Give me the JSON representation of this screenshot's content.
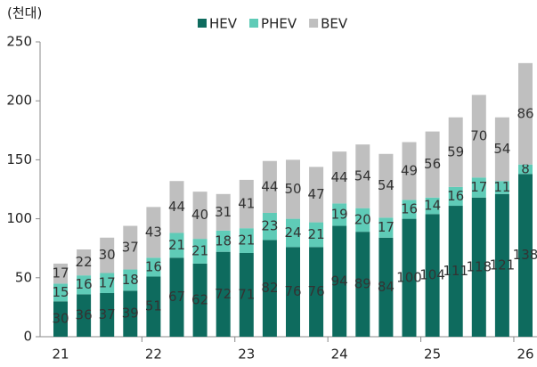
{
  "chart_data": {
    "type": "stacked_bar",
    "ylabel": "(천대)",
    "categories": [
      "21",
      null,
      null,
      null,
      "22",
      null,
      null,
      null,
      "23",
      null,
      null,
      null,
      "24",
      null,
      null,
      null,
      "25",
      null,
      null,
      null,
      "26"
    ],
    "series": [
      {
        "name": "HEV",
        "color": "#0e6b5e",
        "values": [
          30,
          36,
          37,
          39,
          51,
          67,
          62,
          72,
          71,
          82,
          76,
          76,
          94,
          89,
          84,
          100,
          104,
          111,
          118,
          121,
          138
        ]
      },
      {
        "name": "PHEV",
        "color": "#5fcbb7",
        "values": [
          15,
          16,
          17,
          18,
          16,
          21,
          21,
          18,
          21,
          23,
          24,
          21,
          19,
          20,
          17,
          16,
          14,
          16,
          17,
          11,
          8
        ]
      },
      {
        "name": "BEV",
        "color": "#bfbfbf",
        "values": [
          17,
          22,
          30,
          37,
          43,
          44,
          40,
          31,
          41,
          44,
          50,
          47,
          44,
          54,
          54,
          49,
          56,
          59,
          70,
          54,
          86
        ]
      }
    ],
    "ylim": [
      0,
      250
    ],
    "yticks": [
      0,
      50,
      100,
      150,
      200,
      250
    ],
    "legend": "top"
  }
}
